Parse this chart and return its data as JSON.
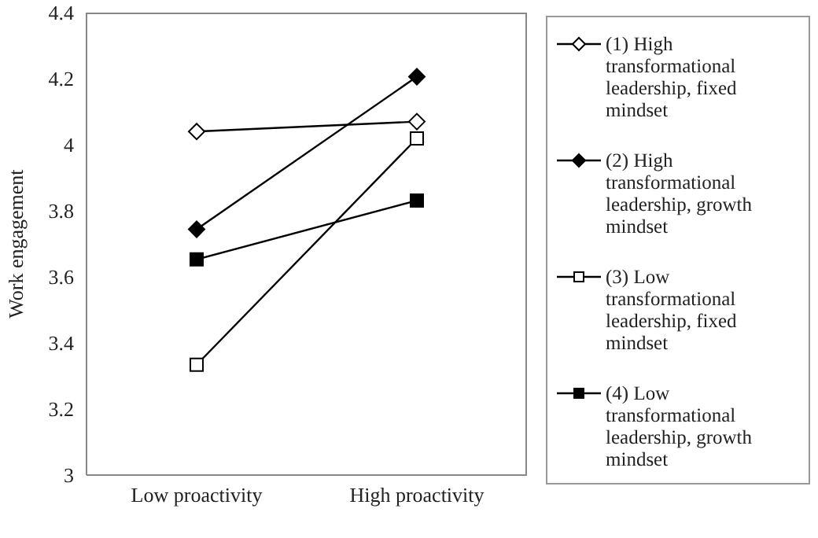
{
  "chart_data": {
    "type": "line",
    "ylabel": "Work engagement",
    "categories": [
      "Low proactivity",
      "High proactivity"
    ],
    "series": [
      {
        "name": "(1) High transformational leadership, fixed mindset",
        "color": "#000000",
        "marker": "diamond",
        "values": [
          4.04,
          4.07
        ]
      },
      {
        "name": "(2) High transformational leadership, growth mindset",
        "color": "#000000",
        "marker": "diamond",
        "values": [
          3.744,
          4.206
        ]
      },
      {
        "name": "(3) Low transformational leadership, fixed mindset",
        "color": "#000000",
        "marker": "square",
        "values": [
          3.334,
          4.019
        ]
      },
      {
        "name": "(4) Low transformational leadership, growth mindset",
        "color": "#000000",
        "marker": "square",
        "values": [
          3.653,
          3.831
        ]
      }
    ],
    "ylim": [
      3,
      4.4
    ],
    "yticks": [
      3,
      3.2,
      3.4,
      3.6,
      3.8,
      4,
      4.2,
      4.4
    ],
    "grid": false,
    "legend": "right"
  }
}
